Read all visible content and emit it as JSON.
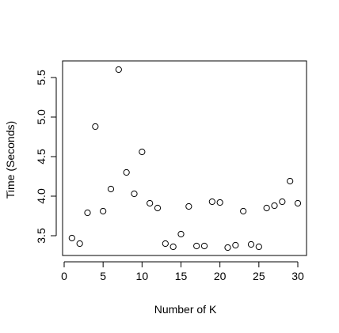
{
  "chart_data": {
    "type": "scatter",
    "title": "",
    "xlabel": "Number of K",
    "ylabel": "Time (Seconds)",
    "xlim": [
      0,
      31
    ],
    "ylim": [
      3.25,
      5.65
    ],
    "x_ticks": [
      0,
      5,
      10,
      15,
      20,
      25,
      30
    ],
    "y_ticks": [
      3.5,
      4.0,
      4.5,
      5.0,
      5.5
    ],
    "x_tick_labels": [
      "0",
      "5",
      "10",
      "15",
      "20",
      "25",
      "30"
    ],
    "y_tick_labels": [
      "3.5",
      "4.0",
      "4.5",
      "5.0",
      "5.5"
    ],
    "grid": false,
    "legend": "none",
    "marker": "open-circle",
    "colors": {
      "marker_stroke": "#000000",
      "axis": "#000000",
      "background": "#ffffff"
    },
    "points": [
      {
        "x": 1,
        "y": 3.47
      },
      {
        "x": 2,
        "y": 3.4
      },
      {
        "x": 3,
        "y": 3.79
      },
      {
        "x": 4,
        "y": 4.88
      },
      {
        "x": 5,
        "y": 3.81
      },
      {
        "x": 6,
        "y": 4.09
      },
      {
        "x": 7,
        "y": 5.6
      },
      {
        "x": 8,
        "y": 4.3
      },
      {
        "x": 9,
        "y": 4.03
      },
      {
        "x": 10,
        "y": 4.56
      },
      {
        "x": 11,
        "y": 3.91
      },
      {
        "x": 12,
        "y": 3.85
      },
      {
        "x": 13,
        "y": 3.4
      },
      {
        "x": 14,
        "y": 3.36
      },
      {
        "x": 15,
        "y": 3.52
      },
      {
        "x": 16,
        "y": 3.87
      },
      {
        "x": 17,
        "y": 3.37
      },
      {
        "x": 18,
        "y": 3.37
      },
      {
        "x": 19,
        "y": 3.93
      },
      {
        "x": 20,
        "y": 3.92
      },
      {
        "x": 21,
        "y": 3.35
      },
      {
        "x": 22,
        "y": 3.38
      },
      {
        "x": 23,
        "y": 3.81
      },
      {
        "x": 24,
        "y": 3.39
      },
      {
        "x": 25,
        "y": 3.36
      },
      {
        "x": 26,
        "y": 3.85
      },
      {
        "x": 27,
        "y": 3.88
      },
      {
        "x": 28,
        "y": 3.93
      },
      {
        "x": 29,
        "y": 4.19
      },
      {
        "x": 30,
        "y": 3.91
      }
    ]
  }
}
